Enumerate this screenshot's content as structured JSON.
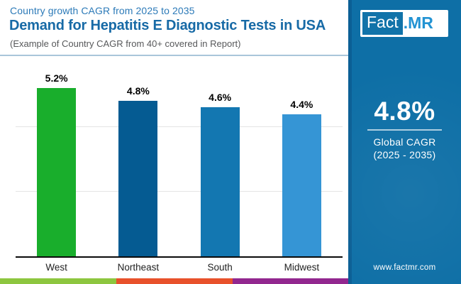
{
  "header": {
    "kicker": "Country growth CAGR from 2025 to 2035",
    "title": "Demand for Hepatitis E Diagnostic Tests in USA",
    "subtitle": "(Example of Country CAGR from 40+ covered in Report)"
  },
  "chart_data": {
    "type": "bar",
    "title": "Demand for Hepatitis E Diagnostic Tests in USA",
    "categories": [
      "West",
      "Northeast",
      "South",
      "Midwest"
    ],
    "values": [
      5.2,
      4.8,
      4.6,
      4.4
    ],
    "value_labels": [
      "5.2%",
      "4.8%",
      "4.6%",
      "4.4%"
    ],
    "bar_colors": [
      "#19ae2c",
      "#055b92",
      "#1377b1",
      "#3595d5"
    ],
    "xlabel": "",
    "ylabel": "",
    "ylim": [
      0,
      5.2
    ],
    "gridline_values": [
      2,
      4
    ],
    "grid": "horizontal-faint",
    "legend": "none"
  },
  "sidebar": {
    "logo": {
      "part1": "Fact",
      "part2": ".MR"
    },
    "stat_value": "4.8%",
    "stat_label_line1": "Global CAGR",
    "stat_label_line2": "(2025 - 2035)",
    "website": "www.factmr.com",
    "panel_color": "#0e6fa6"
  },
  "footer_strip_colors": [
    "#8dc63f",
    "#e8512b",
    "#92278f"
  ]
}
